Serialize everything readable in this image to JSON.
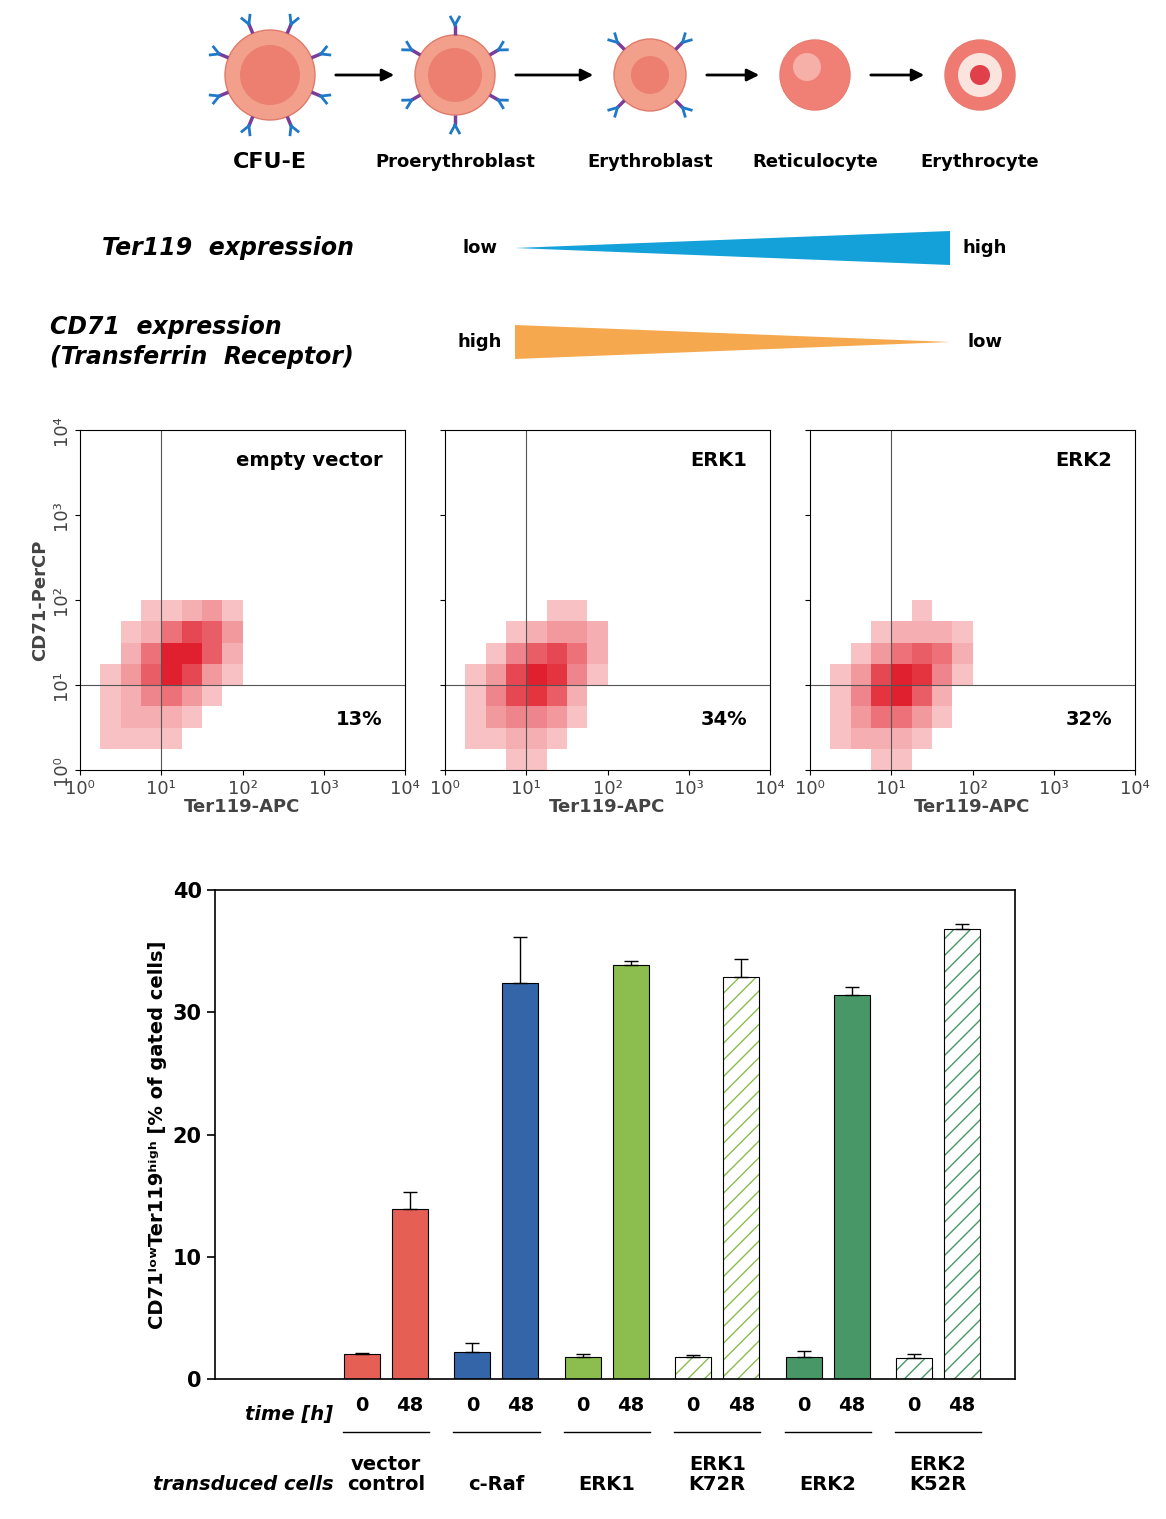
{
  "diagram": {
    "stages": [
      "CFU-E",
      "Proerythroblast",
      "Erythroblast",
      "Reticulocyte",
      "Erythrocyte"
    ],
    "ter119": {
      "label": "Ter119  expression",
      "start": "low",
      "end": "high",
      "color": "#14a0d8"
    },
    "cd71": {
      "label": "CD71  expression\n(Transferrin  Receptor)",
      "start": "high",
      "end": "low",
      "color": "#f5a84e"
    }
  },
  "chart_data": [
    {
      "type": "density",
      "title": "empty vector",
      "xlabel": "Ter119-APC",
      "ylabel": "CD71-PerCP",
      "color": "#e0202e",
      "log": true,
      "tick_labels": true,
      "xlim": [
        1,
        10000
      ],
      "ylim": [
        1,
        10000
      ],
      "xticks": [
        {
          "value": 1,
          "label": "10⁰"
        },
        {
          "value": 10,
          "label": "10¹"
        },
        {
          "value": 100,
          "label": "10²"
        },
        {
          "value": 1000,
          "label": "10³"
        },
        {
          "value": 10000,
          "label": "10⁴"
        }
      ],
      "yticks": [
        {
          "value": 1,
          "label": "10⁰"
        },
        {
          "value": 10,
          "label": "10¹"
        },
        {
          "value": 100,
          "label": "10²"
        },
        {
          "value": 1000,
          "label": "10³"
        },
        {
          "value": 10000,
          "label": "10⁴"
        }
      ],
      "gates": {
        "x": 10,
        "y": 10
      },
      "gated_percent": {
        "value": 13,
        "label": "13%"
      },
      "x_bins": [
        1,
        1.78,
        3.16,
        5.62,
        10,
        17.8,
        31.6,
        56.2,
        100,
        178
      ],
      "y_bins": [
        1,
        1.78,
        3.16,
        5.62,
        10,
        17.8,
        31.6,
        56.2,
        100,
        178
      ],
      "cells": [
        [
          0,
          0,
          0,
          0,
          0,
          0,
          0,
          0,
          0
        ],
        [
          0,
          1,
          1,
          1,
          1,
          0,
          0,
          0,
          0
        ],
        [
          0,
          1,
          2,
          2,
          2,
          1,
          0,
          0,
          0
        ],
        [
          0,
          1,
          2,
          4,
          5,
          3,
          1,
          0,
          0
        ],
        [
          0,
          1,
          3,
          6,
          9,
          7,
          3,
          1,
          0
        ],
        [
          0,
          0,
          2,
          5,
          9,
          9,
          6,
          2,
          0
        ],
        [
          0,
          0,
          1,
          2,
          5,
          7,
          6,
          3,
          0
        ],
        [
          0,
          0,
          0,
          1,
          1,
          2,
          3,
          1,
          0
        ],
        [
          0,
          0,
          0,
          0,
          0,
          0,
          0,
          0,
          0
        ]
      ]
    },
    {
      "type": "density",
      "title": "ERK1",
      "xlabel": "Ter119-APC",
      "color": "#e0202e",
      "log": true,
      "tick_labels": "x",
      "xlim": [
        1,
        10000
      ],
      "ylim": [
        1,
        10000
      ],
      "xticks": [
        {
          "value": 1,
          "label": "10⁰"
        },
        {
          "value": 10,
          "label": "10¹"
        },
        {
          "value": 100,
          "label": "10²"
        },
        {
          "value": 1000,
          "label": "10³"
        },
        {
          "value": 10000,
          "label": "10⁴"
        }
      ],
      "yticks": [
        {
          "value": 1,
          "label": "10⁰"
        },
        {
          "value": 10,
          "label": "10¹"
        },
        {
          "value": 100,
          "label": "10²"
        },
        {
          "value": 1000,
          "label": "10³"
        },
        {
          "value": 10000,
          "label": "10⁴"
        }
      ],
      "gates": {
        "x": 10,
        "y": 10
      },
      "gated_percent": {
        "value": 34,
        "label": "34%"
      },
      "x_bins": [
        1,
        1.78,
        3.16,
        5.62,
        10,
        17.8,
        31.6,
        56.2,
        100,
        178
      ],
      "y_bins": [
        1,
        1.78,
        3.16,
        5.62,
        10,
        17.8,
        31.6,
        56.2,
        100,
        178
      ],
      "cells": [
        [
          0,
          0,
          0,
          1,
          1,
          0,
          0,
          0,
          0
        ],
        [
          0,
          1,
          1,
          2,
          2,
          1,
          0,
          0,
          0
        ],
        [
          0,
          1,
          3,
          4,
          4,
          3,
          1,
          0,
          0
        ],
        [
          0,
          1,
          4,
          7,
          8,
          6,
          2,
          0,
          0
        ],
        [
          0,
          1,
          3,
          7,
          9,
          8,
          4,
          1,
          0
        ],
        [
          0,
          0,
          1,
          4,
          6,
          7,
          5,
          2,
          0
        ],
        [
          0,
          0,
          0,
          1,
          2,
          3,
          3,
          2,
          0
        ],
        [
          0,
          0,
          0,
          0,
          0,
          1,
          1,
          0,
          0
        ],
        [
          0,
          0,
          0,
          0,
          0,
          0,
          0,
          0,
          0
        ]
      ]
    },
    {
      "type": "density",
      "title": "ERK2",
      "xlabel": "Ter119-APC",
      "color": "#e0202e",
      "log": true,
      "tick_labels": "x",
      "xlim": [
        1,
        10000
      ],
      "ylim": [
        1,
        10000
      ],
      "xticks": [
        {
          "value": 1,
          "label": "10⁰"
        },
        {
          "value": 10,
          "label": "10¹"
        },
        {
          "value": 100,
          "label": "10²"
        },
        {
          "value": 1000,
          "label": "10³"
        },
        {
          "value": 10000,
          "label": "10⁴"
        }
      ],
      "yticks": [
        {
          "value": 1,
          "label": "10⁰"
        },
        {
          "value": 10,
          "label": "10¹"
        },
        {
          "value": 100,
          "label": "10²"
        },
        {
          "value": 1000,
          "label": "10³"
        },
        {
          "value": 10000,
          "label": "10⁴"
        }
      ],
      "gates": {
        "x": 10,
        "y": 10
      },
      "gated_percent": {
        "value": 32,
        "label": "32%"
      },
      "x_bins": [
        1,
        1.78,
        3.16,
        5.62,
        10,
        17.8,
        31.6,
        56.2,
        100,
        178
      ],
      "y_bins": [
        1,
        1.78,
        3.16,
        5.62,
        10,
        17.8,
        31.6,
        56.2,
        100,
        178
      ],
      "cells": [
        [
          0,
          0,
          0,
          1,
          1,
          0,
          0,
          0,
          0
        ],
        [
          0,
          1,
          2,
          2,
          2,
          1,
          0,
          0,
          0
        ],
        [
          0,
          1,
          3,
          5,
          5,
          3,
          1,
          0,
          0
        ],
        [
          0,
          1,
          4,
          8,
          9,
          6,
          2,
          0,
          0
        ],
        [
          0,
          1,
          3,
          7,
          9,
          8,
          4,
          1,
          0
        ],
        [
          0,
          0,
          1,
          3,
          5,
          6,
          5,
          2,
          0
        ],
        [
          0,
          0,
          0,
          1,
          2,
          2,
          2,
          1,
          0
        ],
        [
          0,
          0,
          0,
          0,
          0,
          1,
          0,
          0,
          0
        ],
        [
          0,
          0,
          0,
          0,
          0,
          0,
          0,
          0,
          0
        ]
      ]
    },
    {
      "type": "bar",
      "ylabel": "CD71ˡᵒʷTer119ʰⁱᵍʰ [% of gated cells]",
      "ylim": [
        0,
        40
      ],
      "yticks": [
        0,
        10,
        20,
        30,
        40
      ],
      "time_label": "time [h]",
      "group_label": "transduced cells",
      "times": [
        0,
        48
      ],
      "groups": [
        {
          "label": "vector\ncontrol",
          "color": "#e55f55",
          "line_style": "solid",
          "values": [
            2.1,
            13.9
          ],
          "errors": [
            0.05,
            1.4
          ]
        },
        {
          "label": "c-Raf",
          "color": "#3465a8",
          "line_style": "solid",
          "values": [
            2.2,
            32.4
          ],
          "errors": [
            0.8,
            3.8
          ]
        },
        {
          "label": "ERK1",
          "color": "#8bbd4f",
          "line_style": "solid",
          "values": [
            1.8,
            33.9
          ],
          "errors": [
            0.3,
            0.3
          ]
        },
        {
          "label": "ERK1\nK72R",
          "color": "#8bbd4f",
          "line_style": "hatched",
          "values": [
            1.8,
            32.9
          ],
          "errors": [
            0.2,
            1.5
          ]
        },
        {
          "label": "ERK2",
          "color": "#479866",
          "line_style": "solid",
          "values": [
            1.8,
            31.4
          ],
          "errors": [
            0.5,
            0.7
          ]
        },
        {
          "label": "ERK2\nK52R",
          "color": "#479866",
          "line_style": "hatched",
          "values": [
            1.7,
            36.8
          ],
          "errors": [
            0.4,
            0.4
          ]
        }
      ]
    }
  ]
}
